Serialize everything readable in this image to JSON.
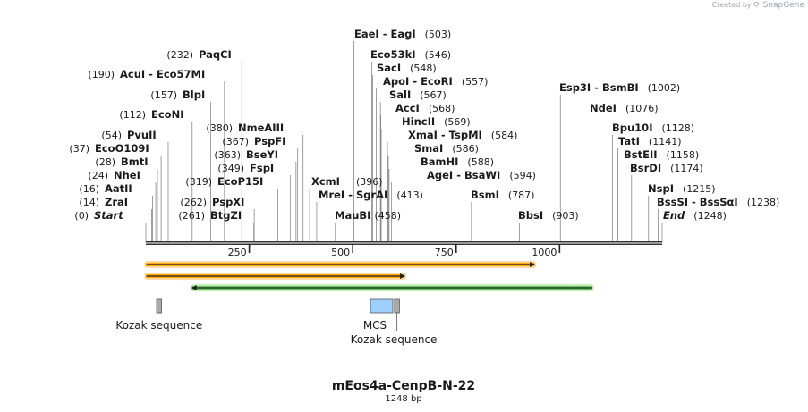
{
  "credit": {
    "prefix": "Created by",
    "brand": "SnapGene"
  },
  "title": "mEos4a-CenpB-N-22",
  "subtitle": "1248 bp",
  "sequence_length": 1248,
  "ruler_ticks": [
    {
      "label": "250",
      "pos": 250
    },
    {
      "label": "500",
      "pos": 500
    },
    {
      "label": "750",
      "pos": 750
    },
    {
      "label": "1000",
      "pos": 1000
    }
  ],
  "sites": [
    {
      "name": "Start",
      "num": "(0)",
      "pos": 0,
      "italic": true
    },
    {
      "name": "ZraI",
      "num": "(14)",
      "pos": 14
    },
    {
      "name": "AatII",
      "num": "(16)",
      "pos": 16
    },
    {
      "name": "NheI",
      "num": "(24)",
      "pos": 24
    },
    {
      "name": "BmtI",
      "num": "(28)",
      "pos": 28
    },
    {
      "name": "EcoO109I",
      "num": "(37)",
      "pos": 37
    },
    {
      "name": "PvuII",
      "num": "(54)",
      "pos": 54
    },
    {
      "name": "EcoNI",
      "num": "(112)",
      "pos": 112
    },
    {
      "name": "BlpI",
      "num": "(157)",
      "pos": 157
    },
    {
      "name": "AcuI  -  Eco57MI",
      "num": "(190)",
      "pos": 190
    },
    {
      "name": "PaqCI",
      "num": "(232)",
      "pos": 232
    },
    {
      "name": "BtgZI",
      "num": "(261)",
      "pos": 261
    },
    {
      "name": "PspXI",
      "num": "(262)",
      "pos": 262
    },
    {
      "name": "EcoP15I",
      "num": "(319)",
      "pos": 319
    },
    {
      "name": "FspI",
      "num": "(349)",
      "pos": 349
    },
    {
      "name": "BseYI",
      "num": "(363)",
      "pos": 363
    },
    {
      "name": "PspFI",
      "num": "(367)",
      "pos": 367
    },
    {
      "name": "NmeAIII",
      "num": "(380)",
      "pos": 380
    },
    {
      "name": "XcmI",
      "num": "(396)",
      "pos": 396
    },
    {
      "name": "MreI  -  SgrAI",
      "num": "(413)",
      "pos": 413
    },
    {
      "name": "MauBI",
      "num": "(458)",
      "pos": 458
    },
    {
      "name": "EaeI  -  EagI",
      "num": "(503)",
      "pos": 503
    },
    {
      "name": "Eco53kI",
      "num": "(546)",
      "pos": 546
    },
    {
      "name": "SacI",
      "num": "(548)",
      "pos": 548
    },
    {
      "name": "ApoI  -  EcoRI",
      "num": "(557)",
      "pos": 557
    },
    {
      "name": "SalI",
      "num": "(567)",
      "pos": 567
    },
    {
      "name": "AccI",
      "num": "(568)",
      "pos": 568
    },
    {
      "name": "HincII",
      "num": "(569)",
      "pos": 569
    },
    {
      "name": "XmaI  -  TspMI",
      "num": "(584)",
      "pos": 584
    },
    {
      "name": "SmaI",
      "num": "(586)",
      "pos": 586
    },
    {
      "name": "BamHI",
      "num": "(588)",
      "pos": 588
    },
    {
      "name": "AgeI  -  BsaWI",
      "num": "(594)",
      "pos": 594
    },
    {
      "name": "BsmI",
      "num": "(787)",
      "pos": 787
    },
    {
      "name": "BbsI",
      "num": "(903)",
      "pos": 903
    },
    {
      "name": "Esp3I  -  BsmBI",
      "num": "(1002)",
      "pos": 1002
    },
    {
      "name": "NdeI",
      "num": "(1076)",
      "pos": 1076
    },
    {
      "name": "Bpu10I",
      "num": "(1128)",
      "pos": 1128
    },
    {
      "name": "TatI",
      "num": "(1141)",
      "pos": 1141
    },
    {
      "name": "BstEII",
      "num": "(1158)",
      "pos": 1158
    },
    {
      "name": "BsrDI",
      "num": "(1174)",
      "pos": 1174
    },
    {
      "name": "NspI",
      "num": "(1215)",
      "pos": 1215
    },
    {
      "name": "BssSI  -  BssSαI",
      "num": "(1238)",
      "pos": 1238
    },
    {
      "name": "End",
      "num": "(1248)",
      "pos": 1248,
      "italic": true
    }
  ],
  "orfs": [
    {
      "start": 1,
      "end": 939,
      "direction": "forward",
      "fill": "#ffa500",
      "glow": "#ffd9a0"
    },
    {
      "start": 1,
      "end": 625,
      "direction": "forward",
      "fill": "#ffa500",
      "glow": "#ffd9a0"
    },
    {
      "start": 112,
      "end": 1079,
      "direction": "reverse",
      "fill": "#5fc35f",
      "glow": "#c8efb8"
    }
  ],
  "features": [
    {
      "name": "Kozak sequence",
      "start": 26,
      "end": 38,
      "color": "#aaaaaa",
      "label": "Kozak sequence"
    },
    {
      "name": "MCS",
      "start": 543,
      "end": 597,
      "color": "#9fcfff",
      "label": "MCS"
    },
    {
      "name": "Kozak sequence",
      "start": 601,
      "end": 613,
      "color": "#aaaaaa",
      "label": "Kozak sequence"
    }
  ],
  "colors": {
    "text": "#1a1a1a",
    "leader": "#888888",
    "backbone": "#333333"
  }
}
